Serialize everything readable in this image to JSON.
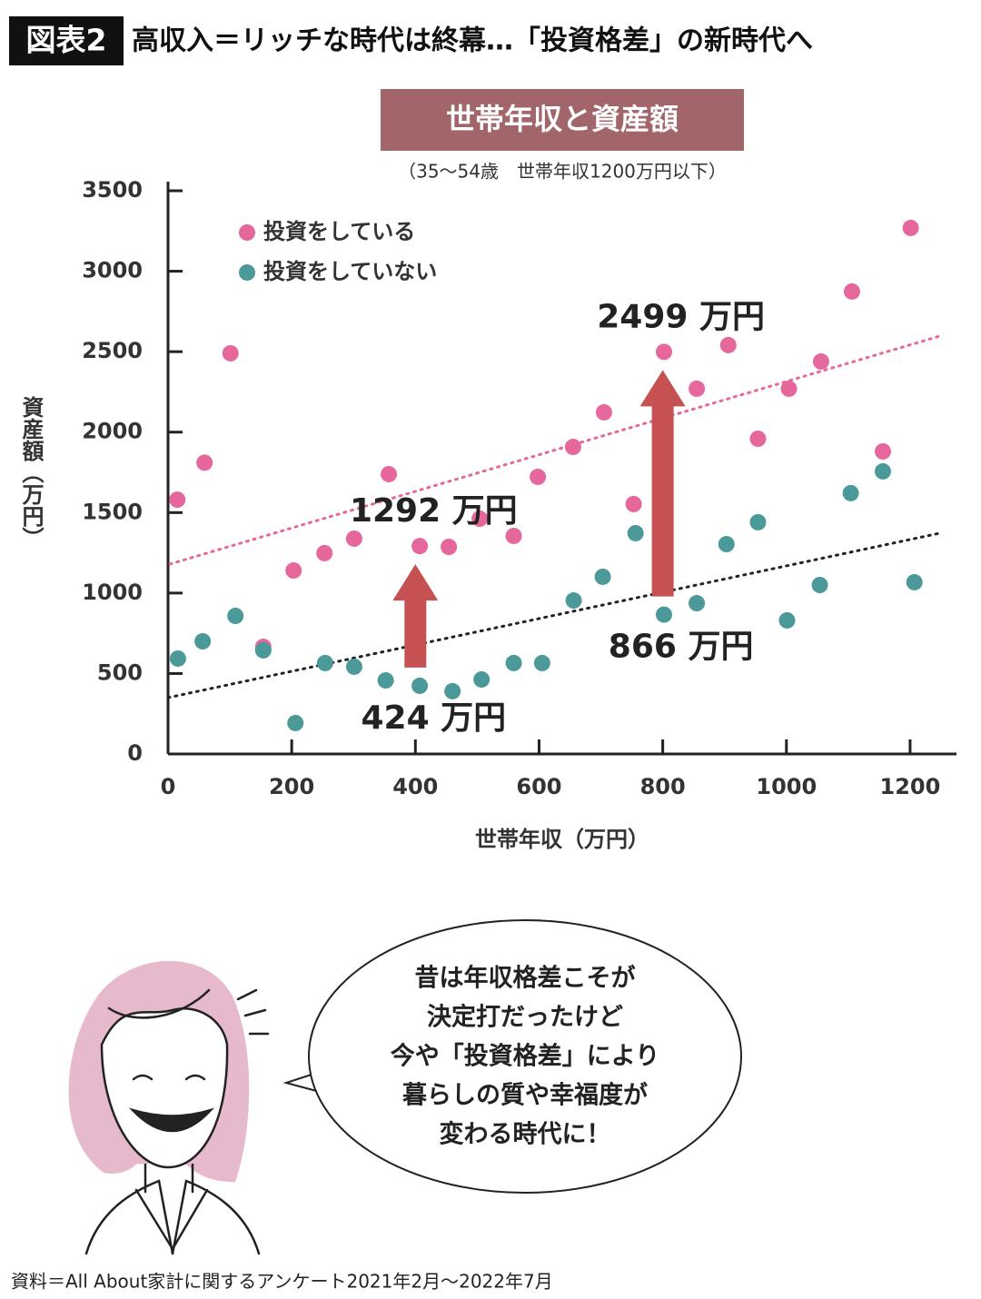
{
  "header": {
    "badge": "図表2",
    "title": "高収入＝リッチな時代は終幕…「投資格差」の新時代へ"
  },
  "chart_data": {
    "type": "scatter",
    "title": "世帯年収と資産額",
    "subtitle": "（35～54歳　世帯年収1200万円以下）",
    "x_label": "世帯年収（万円）",
    "y_label": "資産額（万円）",
    "xlim": [
      0,
      1275
    ],
    "ylim": [
      0,
      3500
    ],
    "xticks": [
      0,
      200,
      400,
      600,
      800,
      1000,
      1200
    ],
    "yticks": [
      0,
      500,
      1000,
      1500,
      2000,
      2500,
      3000,
      3500
    ],
    "series": [
      {
        "name": "投資をしている",
        "color": "#e5679c",
        "x": [
          15,
          59,
          101,
          154,
          203,
          253,
          301,
          357,
          407,
          454,
          504,
          559,
          598,
          655,
          705,
          753,
          802,
          855,
          906,
          954,
          1004,
          1056,
          1106,
          1156,
          1201
        ],
        "values": [
          1580,
          1810,
          2490,
          666,
          1140,
          1248,
          1338,
          1739,
          1292,
          1287,
          1462,
          1355,
          1722,
          1908,
          2123,
          1553,
          2499,
          2270,
          2541,
          1959,
          2270,
          2439,
          2874,
          1880,
          3269
        ]
      },
      {
        "name": "投資をしていない",
        "color": "#4b9a99",
        "x": [
          16,
          56,
          109,
          154,
          206,
          254,
          301,
          352,
          407,
          460,
          507,
          559,
          605,
          656,
          703,
          756,
          802,
          855,
          903,
          954,
          1001,
          1054,
          1104,
          1156,
          1207
        ],
        "values": [
          593,
          700,
          858,
          644,
          192,
          565,
          542,
          457,
          424,
          390,
          463,
          565,
          565,
          954,
          1101,
          1372,
          866,
          937,
          1304,
          1440,
          830,
          1050,
          1621,
          1756,
          1067
        ]
      }
    ],
    "trendlines": [
      {
        "color": "#e5679c",
        "x": [
          3,
          1248
        ],
        "values": [
          1180,
          2597
        ]
      },
      {
        "color": "#222222",
        "x": [
          0,
          1248
        ],
        "values": [
          350,
          1372
        ]
      }
    ],
    "annotations": [
      {
        "x": 400,
        "low": 424,
        "high": 1292,
        "low_label": "424 万円",
        "high_label": "1292 万円",
        "color": "#c65152"
      },
      {
        "x": 800,
        "low": 866,
        "high": 2499,
        "low_label": "866 万円",
        "high_label": "2499 万円",
        "color": "#c65152"
      }
    ]
  },
  "bubble": {
    "lines": [
      "昔は年収格差こそが",
      "決定打だったけど",
      "今や「投資格差」により",
      "暮らしの質や幸福度が",
      "変わる時代に！"
    ]
  },
  "source": "資料＝All About家計に関するアンケート2021年2月～2022年7月"
}
